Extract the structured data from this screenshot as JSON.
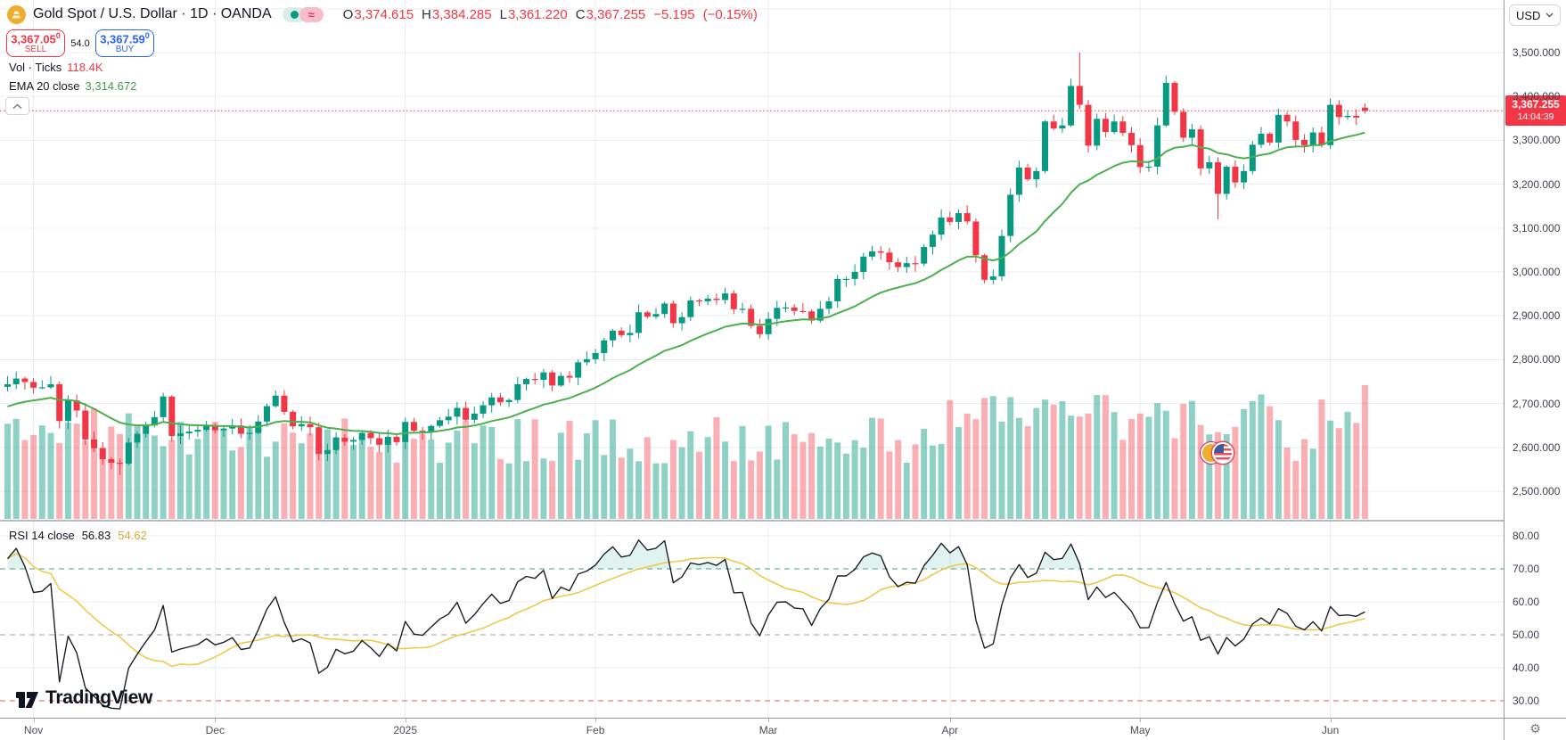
{
  "header": {
    "symbol_title": "Gold Spot / U.S. Dollar · 1D · OANDA",
    "symbol_icon": "gold-coin",
    "delayed_symbol": "≈",
    "ohlc": {
      "o_label": "O",
      "o": "3,374.615",
      "h_label": "H",
      "h": "3,384.285",
      "l_label": "L",
      "l": "3,361.220",
      "c_label": "C",
      "c": "3,367.255",
      "change": "−5.195",
      "change_pct": "(−0.15%)"
    },
    "sell": {
      "price": "3,367.05",
      "sup": "0",
      "label": "SELL"
    },
    "spread": "54.0",
    "buy": {
      "price": "3,367.59",
      "sup": "0",
      "label": "BUY"
    },
    "vol": {
      "label": "Vol · Ticks",
      "value": "118.4K"
    },
    "ema": {
      "label": "EMA 20 close",
      "value": "3,314.672"
    }
  },
  "rsi": {
    "label": "RSI 14 close",
    "value": "56.83",
    "ma_value": "54.62"
  },
  "price_axis": {
    "currency": "USD",
    "labels": [
      "3,500.000",
      "3,400.000",
      "3,300.000",
      "3,200.000",
      "3,100.000",
      "3,000.000",
      "2,900.000",
      "2,800.000",
      "2,700.000",
      "2,600.000",
      "2,500.000"
    ],
    "last_price": "3,367.255",
    "countdown": "14:04:39"
  },
  "rsi_axis": {
    "labels": [
      "80.00",
      "70.00",
      "60.00",
      "50.00",
      "40.00",
      "30.00"
    ]
  },
  "time_axis": {
    "labels": [
      {
        "label": "Nov",
        "bar": 3
      },
      {
        "label": "Dec",
        "bar": 24
      },
      {
        "label": "2025",
        "bar": 46
      },
      {
        "label": "Feb",
        "bar": 68
      },
      {
        "label": "Mar",
        "bar": 88
      },
      {
        "label": "Apr",
        "bar": 109
      },
      {
        "label": "May",
        "bar": 131
      },
      {
        "label": "Jun",
        "bar": 153
      }
    ]
  },
  "watermark": {
    "brand": "TradingView"
  },
  "colors": {
    "candle_up": "#089981",
    "candle_down": "#F23645",
    "vol_up": "rgba(8,153,129,0.45)",
    "vol_down": "rgba(242,54,69,0.4)",
    "ema": "#4CAF50",
    "rsi_line": "#1B1F27",
    "rsi_ma": "#EFC94C",
    "band70": "#4E9E7E",
    "band50": "#A0A3A9",
    "band30": "#DD5E57",
    "grid": "#E9ECF2",
    "separator": "#B7BAC1",
    "last_price": "#F23645",
    "rsi_fill": "rgba(8,153,129,0.12)"
  },
  "chart_data": {
    "type": "candlestick+volume+rsi",
    "title": "Gold Spot / U.S. Dollar",
    "timeframe": "1D",
    "price_axis_range_shown": [
      2500,
      3600
    ],
    "rsi_levels": {
      "upper": 70,
      "middle": 50,
      "lower": 30
    },
    "rsi_last": 56.83,
    "rsi_ma_last": 54.62,
    "ema20_last": 3314.672,
    "current_price": 3367.255,
    "first_open": 2738,
    "ema_seed": 2688,
    "rsi_seed": {
      "gain": 5.5,
      "loss": 2.2
    },
    "rsi_ma_period": 14,
    "closes": [
      2744,
      2757,
      2749,
      2736,
      2737,
      2744,
      2660,
      2707,
      2684,
      2618,
      2598,
      2573,
      2565,
      2563,
      2611,
      2631,
      2650,
      2669,
      2716,
      2626,
      2632,
      2636,
      2640,
      2650,
      2639,
      2643,
      2650,
      2631,
      2633,
      2659,
      2694,
      2718,
      2681,
      2648,
      2653,
      2646,
      2585,
      2594,
      2622,
      2613,
      2617,
      2633,
      2621,
      2606,
      2624,
      2612,
      2658,
      2638,
      2636,
      2649,
      2662,
      2670,
      2690,
      2663,
      2677,
      2696,
      2714,
      2703,
      2708,
      2744,
      2756,
      2754,
      2771,
      2741,
      2763,
      2759,
      2794,
      2801,
      2815,
      2844,
      2866,
      2856,
      2861,
      2908,
      2898,
      2904,
      2928,
      2883,
      2897,
      2935,
      2933,
      2939,
      2936,
      2951,
      2915,
      2916,
      2877,
      2858,
      2893,
      2918,
      2919,
      2911,
      2910,
      2889,
      2916,
      2933,
      2984,
      2984,
      3000,
      3035,
      3047,
      3044,
      3022,
      3011,
      3020,
      3019,
      3057,
      3085,
      3124,
      3114,
      3134,
      3115,
      3038,
      2982,
      2990,
      3082,
      3176,
      3238,
      3211,
      3230,
      3343,
      3327,
      3334,
      3424,
      3381,
      3288,
      3349,
      3319,
      3343,
      3317,
      3289,
      3239,
      3240,
      3334,
      3431,
      3365,
      3306,
      3325,
      3236,
      3250,
      3178,
      3240,
      3204,
      3230,
      3290,
      3315,
      3295,
      3358,
      3343,
      3301,
      3289,
      3318,
      3289,
      3381,
      3353,
      3356,
      3352,
      3367.255
    ],
    "overrides": {
      "open": {
        "157": 3374.615
      },
      "high": {
        "124": 3500,
        "157": 3384.285
      },
      "low": {
        "6": 2643,
        "13": 2537,
        "140": 3120,
        "157": 3361.22
      }
    }
  }
}
